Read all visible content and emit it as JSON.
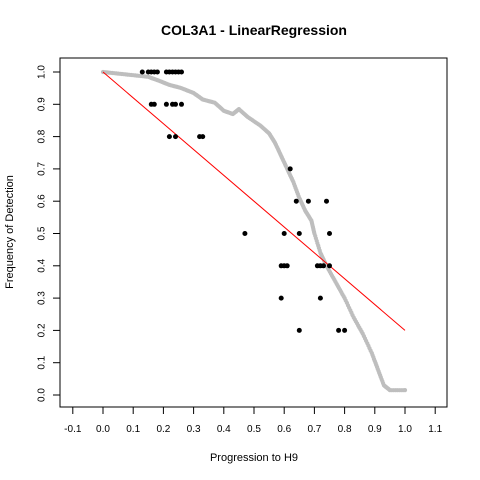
{
  "chart_data": {
    "type": "scatter",
    "title": "COL3A1 - LinearRegression",
    "xlabel": "Progression to H9",
    "ylabel": "Frequency of Detection",
    "xlim": [
      -0.1,
      1.1
    ],
    "ylim": [
      0.0,
      1.0
    ],
    "xticks": [
      "-0.1",
      "0.0",
      "0.1",
      "0.2",
      "0.3",
      "0.4",
      "0.5",
      "0.6",
      "0.7",
      "0.8",
      "0.9",
      "1.0",
      "1.1"
    ],
    "yticks": [
      "0.0",
      "0.1",
      "0.2",
      "0.3",
      "0.4",
      "0.5",
      "0.6",
      "0.7",
      "0.8",
      "0.9",
      "1.0"
    ],
    "grid": false,
    "series": [
      {
        "role": "observed",
        "color": "#000000",
        "points": [
          [
            0.13,
            1.0
          ],
          [
            0.15,
            1.0
          ],
          [
            0.16,
            1.0
          ],
          [
            0.17,
            1.0
          ],
          [
            0.18,
            1.0
          ],
          [
            0.21,
            1.0
          ],
          [
            0.22,
            1.0
          ],
          [
            0.23,
            1.0
          ],
          [
            0.24,
            1.0
          ],
          [
            0.25,
            1.0
          ],
          [
            0.26,
            1.0
          ],
          [
            0.16,
            0.9
          ],
          [
            0.17,
            0.9
          ],
          [
            0.21,
            0.9
          ],
          [
            0.23,
            0.9
          ],
          [
            0.24,
            0.9
          ],
          [
            0.26,
            0.9
          ],
          [
            0.22,
            0.8
          ],
          [
            0.24,
            0.8
          ],
          [
            0.32,
            0.8
          ],
          [
            0.33,
            0.8
          ],
          [
            0.62,
            0.7
          ],
          [
            0.64,
            0.6
          ],
          [
            0.68,
            0.6
          ],
          [
            0.74,
            0.6
          ],
          [
            0.47,
            0.5
          ],
          [
            0.6,
            0.5
          ],
          [
            0.65,
            0.5
          ],
          [
            0.75,
            0.5
          ],
          [
            0.59,
            0.4
          ],
          [
            0.6,
            0.4
          ],
          [
            0.61,
            0.4
          ],
          [
            0.71,
            0.4
          ],
          [
            0.72,
            0.4
          ],
          [
            0.73,
            0.4
          ],
          [
            0.75,
            0.4
          ],
          [
            0.59,
            0.3
          ],
          [
            0.72,
            0.3
          ],
          [
            0.65,
            0.2
          ],
          [
            0.78,
            0.2
          ],
          [
            0.8,
            0.2
          ]
        ]
      },
      {
        "role": "smoothed",
        "color": "#bebebe",
        "curve": [
          [
            0.0,
            1.0
          ],
          [
            0.05,
            0.995
          ],
          [
            0.1,
            0.99
          ],
          [
            0.15,
            0.985
          ],
          [
            0.18,
            0.975
          ],
          [
            0.22,
            0.96
          ],
          [
            0.26,
            0.95
          ],
          [
            0.3,
            0.935
          ],
          [
            0.33,
            0.915
          ],
          [
            0.37,
            0.905
          ],
          [
            0.4,
            0.88
          ],
          [
            0.43,
            0.87
          ],
          [
            0.45,
            0.885
          ],
          [
            0.48,
            0.86
          ],
          [
            0.52,
            0.835
          ],
          [
            0.55,
            0.81
          ],
          [
            0.57,
            0.78
          ],
          [
            0.59,
            0.74
          ],
          [
            0.61,
            0.7
          ],
          [
            0.63,
            0.66
          ],
          [
            0.65,
            0.61
          ],
          [
            0.67,
            0.57
          ],
          [
            0.69,
            0.54
          ],
          [
            0.7,
            0.5
          ],
          [
            0.72,
            0.44
          ],
          [
            0.74,
            0.4
          ],
          [
            0.77,
            0.35
          ],
          [
            0.8,
            0.3
          ],
          [
            0.83,
            0.24
          ],
          [
            0.86,
            0.19
          ],
          [
            0.89,
            0.13
          ],
          [
            0.91,
            0.08
          ],
          [
            0.93,
            0.03
          ],
          [
            0.95,
            0.015
          ],
          [
            1.0,
            0.015
          ]
        ]
      },
      {
        "role": "regression",
        "color": "#ff0000",
        "line": [
          [
            0.0,
            1.0
          ],
          [
            1.0,
            0.2
          ]
        ]
      }
    ]
  }
}
